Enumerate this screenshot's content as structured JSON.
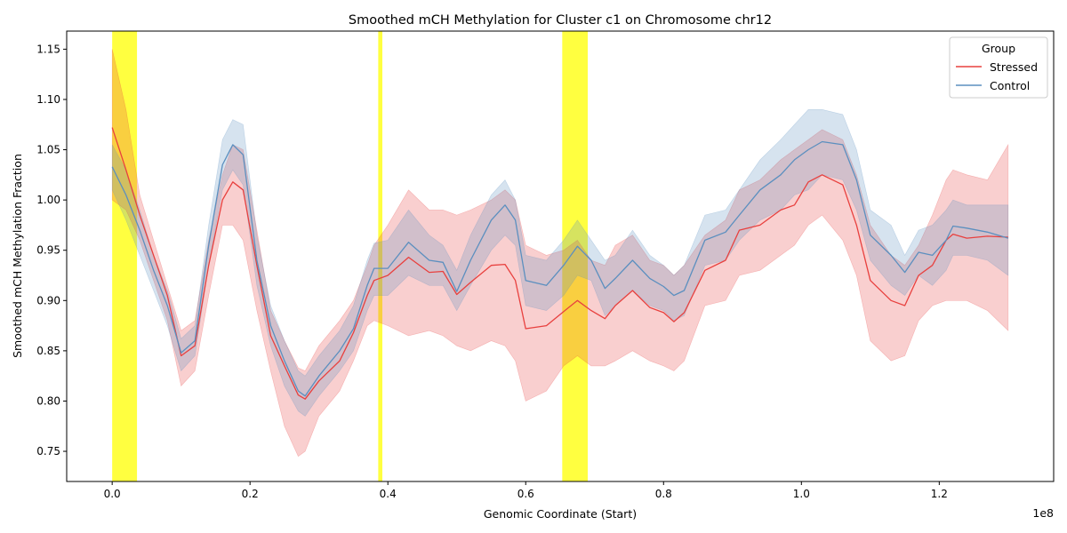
{
  "chart_data": {
    "type": "line",
    "title": "Smoothed mCH Methylation for Cluster c1 on Chromosome chr12",
    "xlabel": "Genomic Coordinate (Start)",
    "ylabel": "Smoothed mCH Methylation Fraction",
    "x_offset_label": "1e8",
    "xlim": [
      -0.066,
      1.366
    ],
    "ylim": [
      0.72,
      1.168
    ],
    "x_ticks": [
      0.0,
      0.2,
      0.4,
      0.6,
      0.8,
      1.0,
      1.2
    ],
    "x_tick_labels": [
      "0.0",
      "0.2",
      "0.4",
      "0.6",
      "0.8",
      "1.0",
      "1.2"
    ],
    "y_ticks": [
      0.75,
      0.8,
      0.85,
      0.9,
      0.95,
      1.0,
      1.05,
      1.1,
      1.15
    ],
    "y_tick_labels": [
      "0.75",
      "0.80",
      "0.85",
      "0.90",
      "0.95",
      "1.00",
      "1.05",
      "1.10",
      "1.15"
    ],
    "grid": false,
    "legend": {
      "title": "Group",
      "position": "top-right"
    },
    "highlight_regions": [
      {
        "x0": 0.0,
        "x1": 0.036,
        "color": "#ffff00"
      },
      {
        "x0": 0.386,
        "x1": 0.392,
        "color": "#ffff00"
      },
      {
        "x0": 0.653,
        "x1": 0.69,
        "color": "#ffff00"
      }
    ],
    "series": [
      {
        "name": "Stressed",
        "color": "#e8403e",
        "x": [
          0.0,
          0.02,
          0.04,
          0.06,
          0.08,
          0.1,
          0.12,
          0.14,
          0.16,
          0.175,
          0.19,
          0.21,
          0.23,
          0.25,
          0.27,
          0.28,
          0.3,
          0.33,
          0.35,
          0.37,
          0.38,
          0.4,
          0.43,
          0.46,
          0.48,
          0.5,
          0.52,
          0.55,
          0.57,
          0.585,
          0.6,
          0.63,
          0.655,
          0.675,
          0.695,
          0.715,
          0.73,
          0.755,
          0.78,
          0.8,
          0.815,
          0.83,
          0.86,
          0.89,
          0.91,
          0.94,
          0.97,
          0.99,
          1.01,
          1.03,
          1.06,
          1.08,
          1.1,
          1.13,
          1.15,
          1.17,
          1.19,
          1.21,
          1.22,
          1.24,
          1.27,
          1.3
        ],
        "y": [
          1.072,
          1.03,
          0.985,
          0.945,
          0.905,
          0.845,
          0.855,
          0.935,
          1.0,
          1.018,
          1.01,
          0.935,
          0.865,
          0.835,
          0.806,
          0.802,
          0.82,
          0.84,
          0.868,
          0.905,
          0.92,
          0.925,
          0.943,
          0.928,
          0.929,
          0.906,
          0.918,
          0.935,
          0.936,
          0.92,
          0.872,
          0.875,
          0.889,
          0.9,
          0.89,
          0.882,
          0.895,
          0.91,
          0.893,
          0.888,
          0.879,
          0.888,
          0.93,
          0.94,
          0.97,
          0.975,
          0.99,
          0.995,
          1.018,
          1.025,
          1.015,
          0.975,
          0.92,
          0.9,
          0.895,
          0.925,
          0.935,
          0.96,
          0.966,
          0.962,
          0.964,
          0.963
        ],
        "upper": [
          1.15,
          1.09,
          1.005,
          0.96,
          0.915,
          0.87,
          0.88,
          0.96,
          1.025,
          1.055,
          1.05,
          0.97,
          0.89,
          0.86,
          0.833,
          0.83,
          0.855,
          0.88,
          0.9,
          0.935,
          0.955,
          0.975,
          1.01,
          0.99,
          0.99,
          0.985,
          0.99,
          1.0,
          1.01,
          1.0,
          0.955,
          0.945,
          0.95,
          0.96,
          0.94,
          0.935,
          0.955,
          0.965,
          0.94,
          0.935,
          0.925,
          0.935,
          0.965,
          0.98,
          1.01,
          1.02,
          1.04,
          1.05,
          1.06,
          1.07,
          1.06,
          1.025,
          0.975,
          0.945,
          0.935,
          0.955,
          0.985,
          1.02,
          1.03,
          1.025,
          1.02,
          1.055
        ],
        "lower": [
          1.0,
          0.99,
          0.96,
          0.92,
          0.88,
          0.815,
          0.83,
          0.905,
          0.975,
          0.975,
          0.96,
          0.89,
          0.83,
          0.775,
          0.745,
          0.75,
          0.785,
          0.81,
          0.84,
          0.875,
          0.88,
          0.875,
          0.865,
          0.87,
          0.865,
          0.855,
          0.85,
          0.86,
          0.855,
          0.84,
          0.8,
          0.81,
          0.835,
          0.845,
          0.835,
          0.835,
          0.84,
          0.85,
          0.84,
          0.835,
          0.83,
          0.84,
          0.895,
          0.9,
          0.925,
          0.93,
          0.945,
          0.955,
          0.975,
          0.985,
          0.96,
          0.925,
          0.86,
          0.84,
          0.845,
          0.88,
          0.895,
          0.9,
          0.9,
          0.9,
          0.89,
          0.87
        ]
      },
      {
        "name": "Control",
        "color": "#5b8fbf",
        "x": [
          0.0,
          0.02,
          0.04,
          0.06,
          0.08,
          0.1,
          0.12,
          0.14,
          0.16,
          0.175,
          0.19,
          0.21,
          0.23,
          0.25,
          0.27,
          0.28,
          0.3,
          0.33,
          0.35,
          0.37,
          0.38,
          0.4,
          0.43,
          0.46,
          0.48,
          0.5,
          0.52,
          0.55,
          0.57,
          0.585,
          0.6,
          0.63,
          0.655,
          0.675,
          0.695,
          0.715,
          0.73,
          0.755,
          0.78,
          0.8,
          0.815,
          0.83,
          0.86,
          0.89,
          0.91,
          0.94,
          0.97,
          0.99,
          1.01,
          1.03,
          1.06,
          1.08,
          1.1,
          1.13,
          1.15,
          1.17,
          1.19,
          1.21,
          1.22,
          1.24,
          1.27,
          1.3
        ],
        "y": [
          1.033,
          1.005,
          0.97,
          0.93,
          0.895,
          0.848,
          0.86,
          0.955,
          1.035,
          1.055,
          1.045,
          0.94,
          0.875,
          0.84,
          0.81,
          0.805,
          0.825,
          0.85,
          0.872,
          0.915,
          0.932,
          0.932,
          0.958,
          0.94,
          0.938,
          0.909,
          0.94,
          0.98,
          0.995,
          0.98,
          0.92,
          0.915,
          0.935,
          0.954,
          0.94,
          0.912,
          0.922,
          0.94,
          0.922,
          0.914,
          0.905,
          0.91,
          0.96,
          0.968,
          0.985,
          1.01,
          1.025,
          1.04,
          1.05,
          1.058,
          1.055,
          1.02,
          0.965,
          0.945,
          0.928,
          0.948,
          0.945,
          0.96,
          0.974,
          0.972,
          0.968,
          0.962
        ],
        "upper": [
          1.055,
          1.03,
          0.99,
          0.945,
          0.91,
          0.862,
          0.875,
          0.975,
          1.06,
          1.08,
          1.075,
          0.965,
          0.895,
          0.86,
          0.83,
          0.825,
          0.845,
          0.87,
          0.895,
          0.94,
          0.957,
          0.96,
          0.99,
          0.965,
          0.955,
          0.93,
          0.965,
          1.005,
          1.02,
          1.0,
          0.945,
          0.94,
          0.96,
          0.98,
          0.96,
          0.94,
          0.945,
          0.97,
          0.945,
          0.935,
          0.925,
          0.935,
          0.985,
          0.99,
          1.01,
          1.04,
          1.06,
          1.075,
          1.09,
          1.09,
          1.085,
          1.05,
          0.99,
          0.975,
          0.945,
          0.97,
          0.975,
          0.99,
          1.0,
          0.995,
          0.995,
          0.995
        ],
        "lower": [
          1.01,
          0.98,
          0.945,
          0.91,
          0.875,
          0.83,
          0.845,
          0.935,
          1.01,
          1.03,
          1.015,
          0.915,
          0.855,
          0.815,
          0.79,
          0.785,
          0.805,
          0.83,
          0.85,
          0.89,
          0.905,
          0.905,
          0.925,
          0.915,
          0.915,
          0.89,
          0.915,
          0.95,
          0.965,
          0.955,
          0.895,
          0.89,
          0.905,
          0.925,
          0.92,
          0.885,
          0.895,
          0.91,
          0.895,
          0.89,
          0.88,
          0.885,
          0.935,
          0.94,
          0.96,
          0.98,
          0.99,
          1.005,
          1.01,
          1.025,
          1.02,
          0.99,
          0.94,
          0.915,
          0.905,
          0.925,
          0.915,
          0.93,
          0.945,
          0.945,
          0.94,
          0.925
        ]
      }
    ]
  }
}
